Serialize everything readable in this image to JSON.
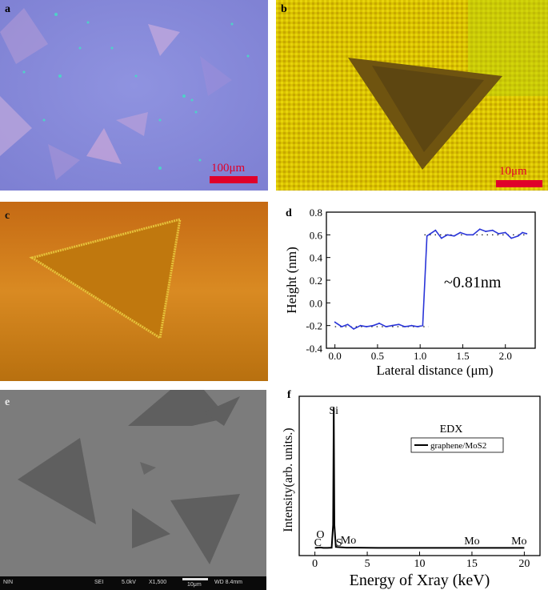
{
  "panels": {
    "a": {
      "label": "a",
      "scale_text": "100μm",
      "scale_color": "#e0002a"
    },
    "b": {
      "label": "b",
      "scale_text": "10μm",
      "scale_color": "#e0002a"
    },
    "c": {
      "label": "c"
    },
    "d": {
      "label": "d"
    },
    "e": {
      "label": "e",
      "info": {
        "left": "NIN",
        "detector": "SEI",
        "voltage": "5.0kV",
        "magnification": "X1,500",
        "scale": "10μm",
        "wd": "WD 8.4mm"
      }
    },
    "f": {
      "label": "f"
    }
  },
  "chart_data": [
    {
      "id": "d",
      "type": "line",
      "title": "",
      "xlabel": "Lateral distance (μm)",
      "ylabel": "Height (nm)",
      "xlim": [
        -0.1,
        2.35
      ],
      "ylim": [
        -0.4,
        0.8
      ],
      "xticks": [
        0.0,
        0.5,
        1.0,
        1.5,
        2.0
      ],
      "xtick_labels": [
        "0.0",
        "0.5",
        "1.0",
        "1.5",
        "2.0"
      ],
      "yticks": [
        -0.4,
        -0.2,
        0.0,
        0.2,
        0.4,
        0.6,
        0.8
      ],
      "ytick_labels": [
        "-0.4",
        "-0.2",
        "0.0",
        "0.2",
        "0.4",
        "0.6",
        "0.8"
      ],
      "annotation": "~0.81nm",
      "color": "#2a35d8",
      "series": [
        {
          "x": [
            0.0,
            0.08,
            0.15,
            0.22,
            0.3,
            0.37,
            0.45,
            0.52,
            0.6,
            0.67,
            0.75,
            0.82,
            0.9,
            0.97,
            1.03,
            1.08,
            1.12,
            1.18,
            1.25,
            1.32,
            1.4,
            1.47,
            1.55,
            1.62,
            1.7,
            1.77,
            1.85,
            1.92,
            2.0,
            2.07,
            2.15,
            2.2,
            2.25
          ],
          "y": [
            -0.17,
            -0.21,
            -0.19,
            -0.23,
            -0.2,
            -0.21,
            -0.2,
            -0.18,
            -0.21,
            -0.2,
            -0.19,
            -0.21,
            -0.2,
            -0.21,
            -0.2,
            0.59,
            0.61,
            0.64,
            0.57,
            0.6,
            0.59,
            0.62,
            0.6,
            0.6,
            0.65,
            0.63,
            0.64,
            0.61,
            0.62,
            0.57,
            0.59,
            0.62,
            0.61
          ]
        }
      ],
      "reference_lines": [
        {
          "style": "dotted",
          "x": [
            0.0,
            1.1
          ],
          "y": [
            -0.21,
            -0.21
          ]
        },
        {
          "style": "dotted",
          "x": [
            1.05,
            2.25
          ],
          "y": [
            0.6,
            0.6
          ]
        }
      ]
    },
    {
      "id": "f",
      "type": "line",
      "title": "",
      "xlabel": "Energy of Xray (keV)",
      "ylabel": "Intensity(arb. units.)",
      "xlim": [
        -1.5,
        21.5
      ],
      "xticks": [
        0,
        5,
        10,
        15,
        20
      ],
      "xtick_labels": [
        "0",
        "5",
        "10",
        "15",
        "20"
      ],
      "legend_title": "EDX",
      "legend_position": "top-right",
      "color": "#000000",
      "series": [
        {
          "name": "graphene/MoS2",
          "x": [
            0,
            0.28,
            0.52,
            0.8,
            1.2,
            1.6,
            1.74,
            1.8,
            1.86,
            2.0,
            2.3,
            3.0,
            4.0,
            6.0,
            10.0,
            15.0,
            20.0
          ],
          "y": [
            2,
            3,
            4,
            2,
            2,
            3,
            100,
            600,
            100,
            6,
            5,
            3,
            3,
            2,
            2,
            2,
            2
          ]
        }
      ],
      "peak_labels": [
        {
          "text": "Si",
          "x": 1.8
        },
        {
          "text": "O",
          "x": 0.52
        },
        {
          "text": "C",
          "x": 0.28
        },
        {
          "text": "S",
          "x": 2.3
        },
        {
          "text": "Mo",
          "x": 3.2
        },
        {
          "text": "Mo",
          "x": 15.0
        },
        {
          "text": "Mo",
          "x": 19.5
        }
      ]
    }
  ]
}
